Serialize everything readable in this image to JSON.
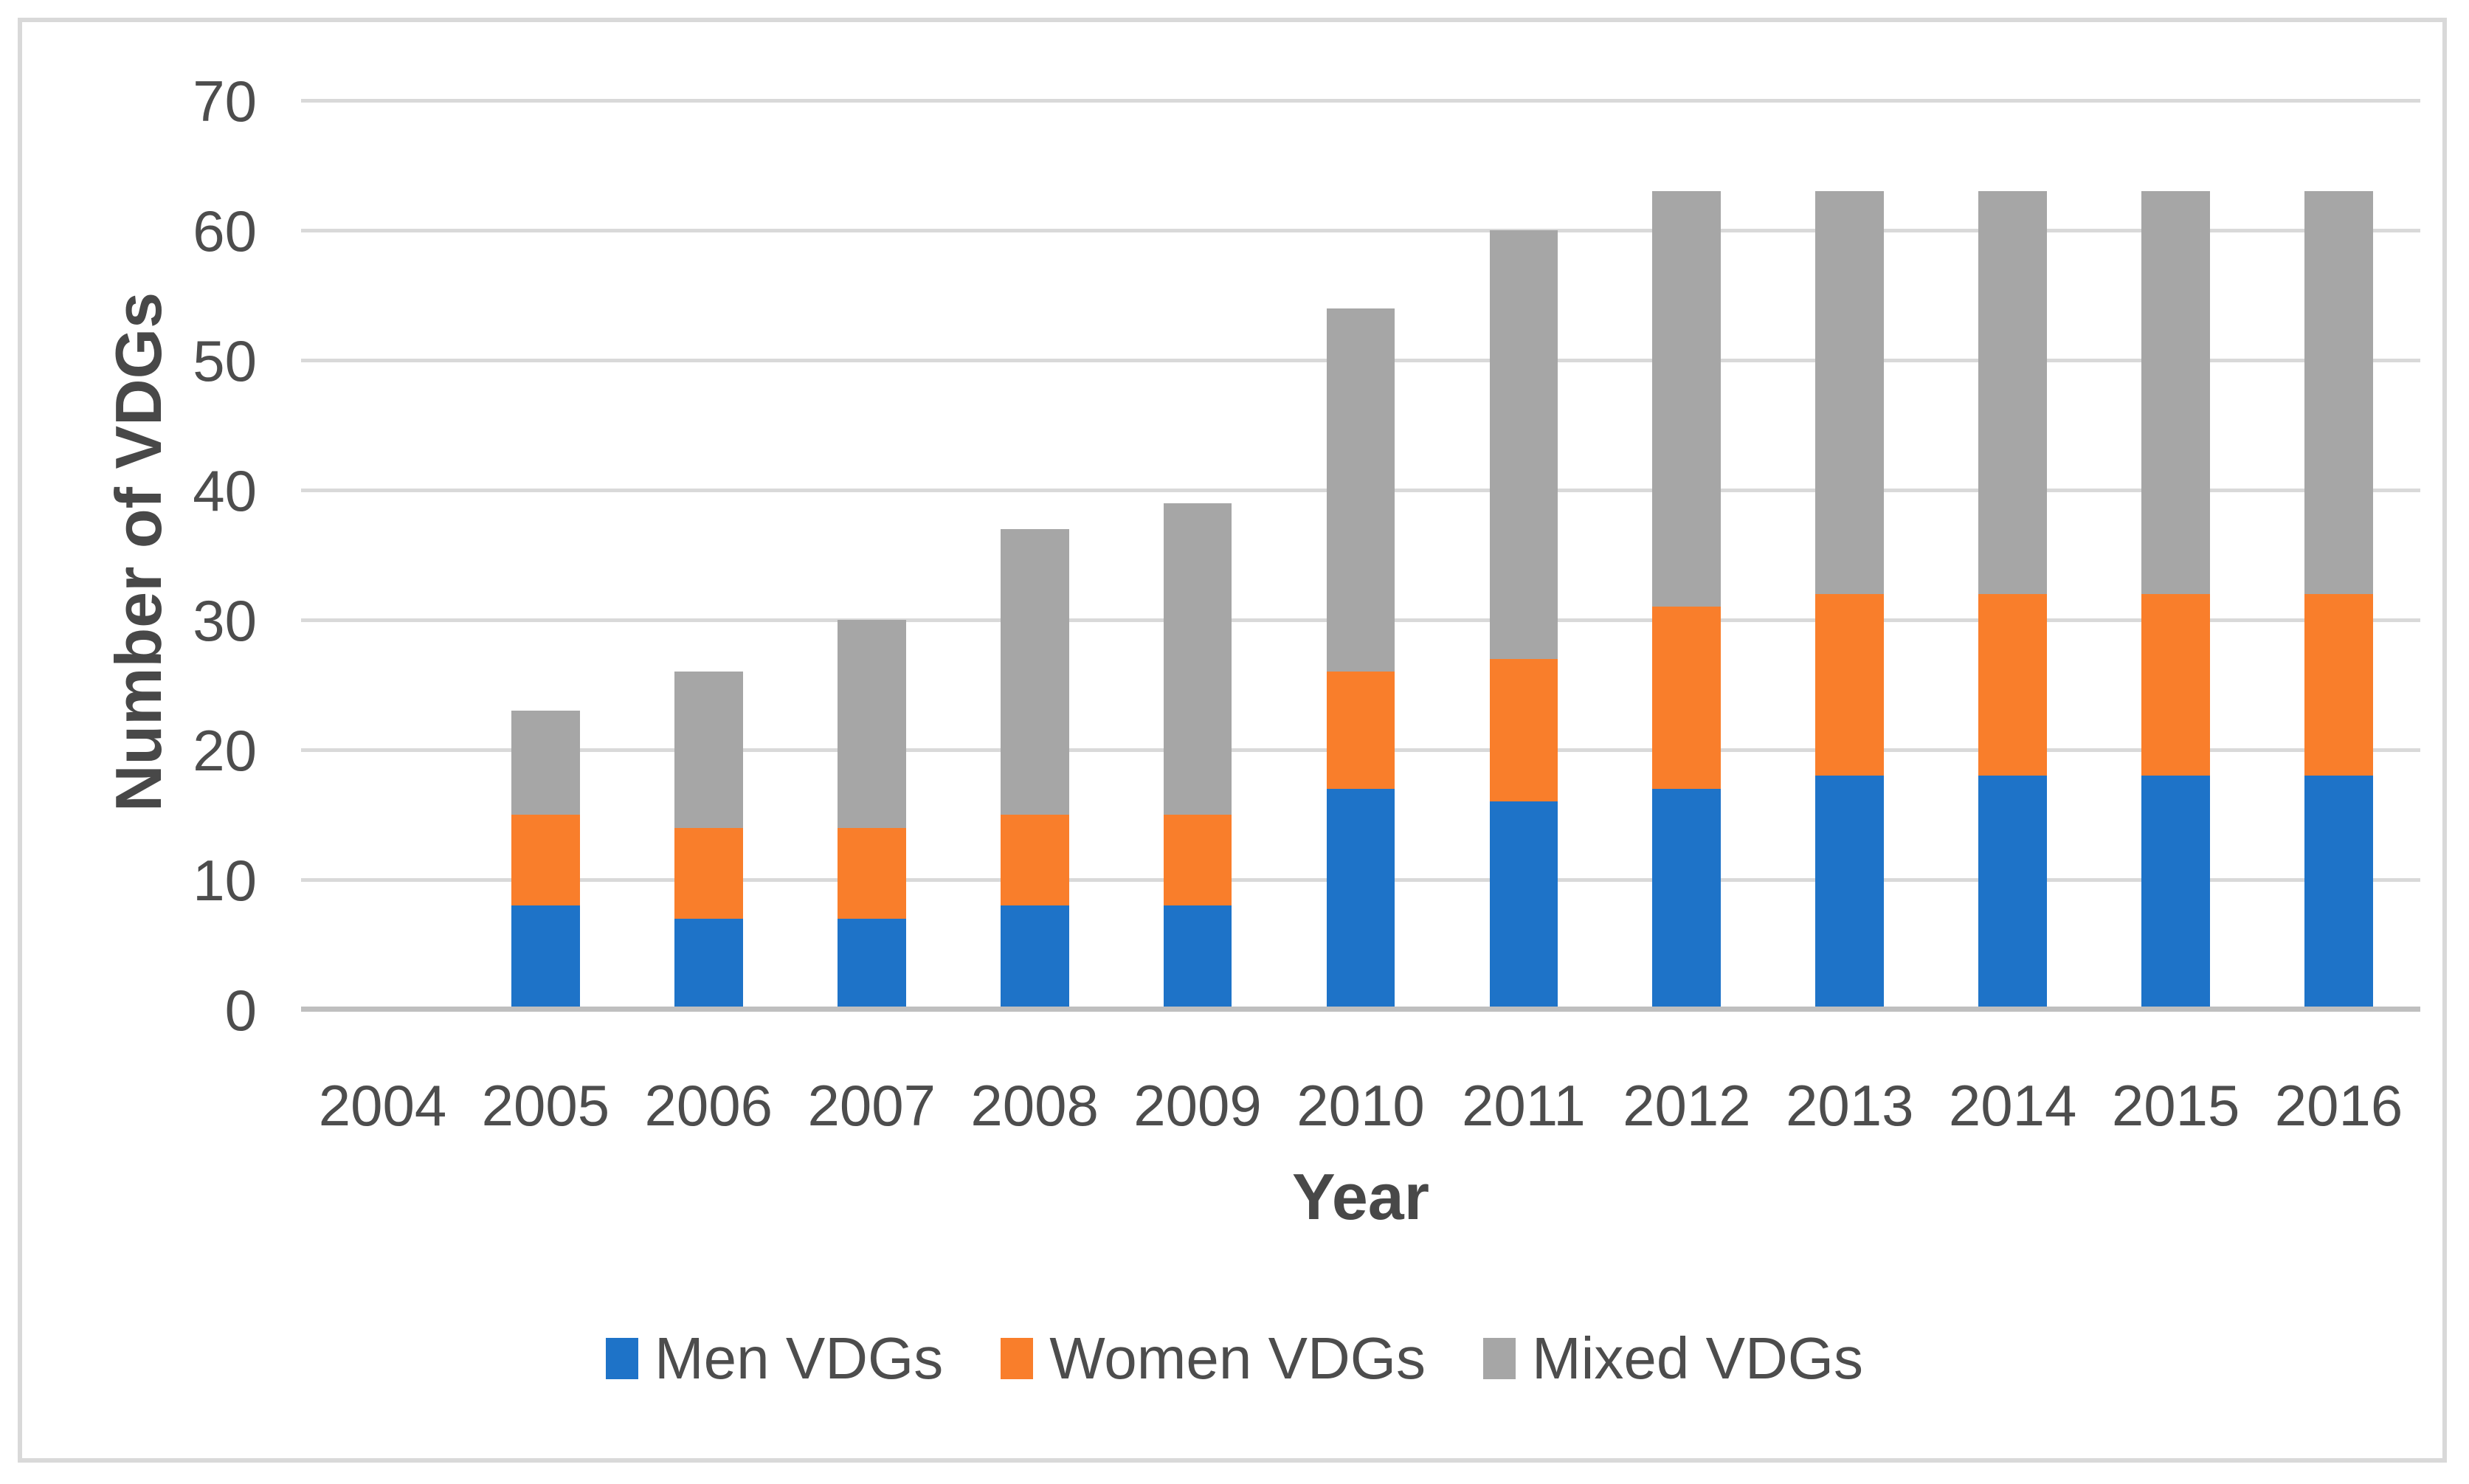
{
  "figure": {
    "background": "#ffffff",
    "border_color": "#d9d9d9"
  },
  "chart_data": {
    "type": "bar",
    "stacked": true,
    "title": "",
    "xlabel": "Year",
    "ylabel": "Number of VDGs",
    "categories": [
      "2004",
      "2005",
      "2006",
      "2007",
      "2008",
      "2009",
      "2010",
      "2011",
      "2012",
      "2013",
      "2014",
      "2015",
      "2016"
    ],
    "series": [
      {
        "name": "Men VDGs",
        "color": "#1e73c8",
        "values": [
          0,
          8,
          7,
          7,
          8,
          8,
          17,
          16,
          17,
          18,
          18,
          18,
          18
        ]
      },
      {
        "name": "Women VDGs",
        "color": "#f97e2b",
        "values": [
          0,
          7,
          7,
          7,
          7,
          7,
          9,
          11,
          14,
          14,
          14,
          14,
          14
        ]
      },
      {
        "name": "Mixed VDGs",
        "color": "#a6a6a6",
        "values": [
          0,
          8,
          12,
          16,
          22,
          24,
          28,
          33,
          32,
          31,
          31,
          31,
          31
        ]
      }
    ],
    "stack_totals": [
      0,
      23,
      26,
      30,
      37,
      39,
      54,
      60,
      63,
      63,
      63,
      63,
      63
    ],
    "ylim": [
      0,
      70
    ],
    "ytick_step": 10,
    "yticks": [
      "0",
      "10",
      "20",
      "30",
      "40",
      "50",
      "60",
      "70"
    ],
    "grid": "horizontal",
    "gridline_color": "#d9d9d9",
    "axis_line_color": "#bfbfbf",
    "tick_label_color": "#4d4d4d",
    "legend_position": "bottom",
    "bar_width_fraction": 0.42
  }
}
